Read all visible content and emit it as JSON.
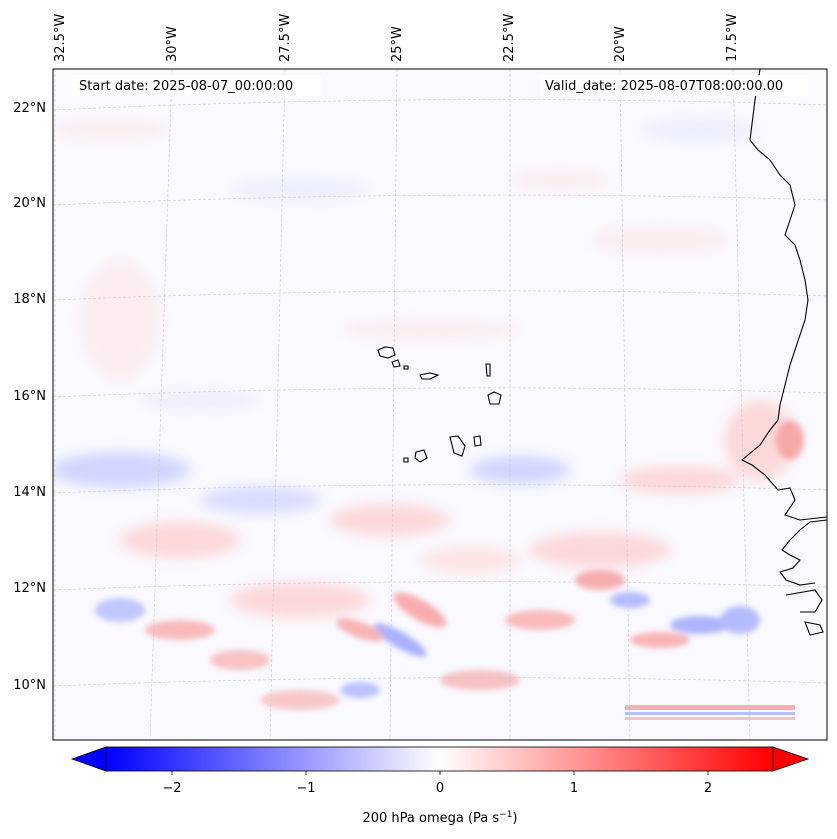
{
  "header": {
    "start_date": "Start date: 2025-08-07_00:00:00",
    "valid_date": "Valid_date: 2025-08-07T08:00:00.00"
  },
  "map": {
    "lon_labels": [
      "32.5°W",
      "30°W",
      "27.5°W",
      "25°W",
      "22.5°W",
      "20°W",
      "17.5°W"
    ],
    "lat_labels": [
      "22°N",
      "20°N",
      "18°N",
      "16°N",
      "14°N",
      "12°N",
      "10°N"
    ],
    "gridlines": true,
    "coastline_color": "#000000",
    "field": "200 hPa omega"
  },
  "colorbar": {
    "label": "200 hPa omega (Pa s",
    "label_sup": "−1",
    "label_close": ")",
    "ticks": [
      "−2",
      "−1",
      "0",
      "1",
      "2"
    ],
    "range": [
      -2.7,
      2.7
    ],
    "extend": "both",
    "cmap": [
      "#0000ff",
      "#ffffff",
      "#ff0000"
    ]
  }
}
